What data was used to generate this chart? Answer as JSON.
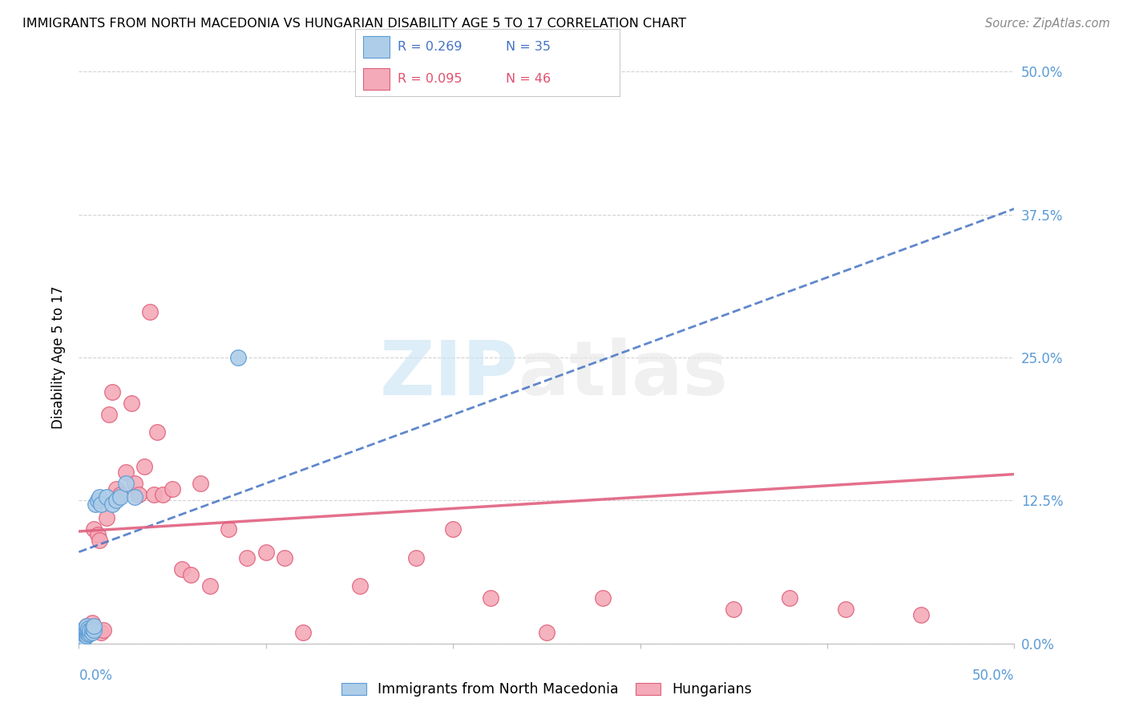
{
  "title": "IMMIGRANTS FROM NORTH MACEDONIA VS HUNGARIAN DISABILITY AGE 5 TO 17 CORRELATION CHART",
  "source": "Source: ZipAtlas.com",
  "ylabel": "Disability Age 5 to 17",
  "ylabel_ticks": [
    "0.0%",
    "12.5%",
    "25.0%",
    "37.5%",
    "50.0%"
  ],
  "ylabel_tick_vals": [
    0.0,
    0.125,
    0.25,
    0.375,
    0.5
  ],
  "xlim": [
    0.0,
    0.5
  ],
  "ylim": [
    0.0,
    0.5
  ],
  "blue_color": "#aecde8",
  "blue_edge_color": "#5b9bd5",
  "pink_color": "#f4aab8",
  "pink_edge_color": "#e0607a",
  "blue_line_color": "#4472c4",
  "pink_line_color": "#e06080",
  "legend_label_blue": "Immigrants from North Macedonia",
  "legend_label_pink": "Hungarians",
  "background_color": "#ffffff",
  "grid_color": "#d3d3d3",
  "blue_points_x": [
    0.001,
    0.001,
    0.001,
    0.002,
    0.002,
    0.002,
    0.002,
    0.003,
    0.003,
    0.003,
    0.003,
    0.004,
    0.004,
    0.004,
    0.004,
    0.005,
    0.005,
    0.005,
    0.006,
    0.006,
    0.007,
    0.007,
    0.008,
    0.008,
    0.009,
    0.01,
    0.011,
    0.012,
    0.015,
    0.018,
    0.02,
    0.022,
    0.025,
    0.03,
    0.085
  ],
  "blue_points_y": [
    0.005,
    0.008,
    0.01,
    0.005,
    0.008,
    0.01,
    0.012,
    0.005,
    0.008,
    0.01,
    0.012,
    0.007,
    0.01,
    0.012,
    0.015,
    0.008,
    0.011,
    0.013,
    0.009,
    0.012,
    0.01,
    0.013,
    0.012,
    0.015,
    0.122,
    0.125,
    0.128,
    0.122,
    0.128,
    0.122,
    0.125,
    0.128,
    0.14,
    0.128,
    0.25
  ],
  "pink_points_x": [
    0.002,
    0.003,
    0.004,
    0.005,
    0.006,
    0.007,
    0.008,
    0.009,
    0.01,
    0.011,
    0.012,
    0.013,
    0.015,
    0.016,
    0.018,
    0.02,
    0.022,
    0.025,
    0.028,
    0.03,
    0.032,
    0.035,
    0.038,
    0.04,
    0.042,
    0.045,
    0.05,
    0.055,
    0.06,
    0.065,
    0.07,
    0.08,
    0.09,
    0.1,
    0.11,
    0.12,
    0.15,
    0.18,
    0.2,
    0.22,
    0.25,
    0.28,
    0.35,
    0.38,
    0.41,
    0.45
  ],
  "pink_points_y": [
    0.01,
    0.012,
    0.015,
    0.01,
    0.012,
    0.018,
    0.1,
    0.012,
    0.095,
    0.09,
    0.01,
    0.012,
    0.11,
    0.2,
    0.22,
    0.135,
    0.13,
    0.15,
    0.21,
    0.14,
    0.13,
    0.155,
    0.29,
    0.13,
    0.185,
    0.13,
    0.135,
    0.065,
    0.06,
    0.14,
    0.05,
    0.1,
    0.075,
    0.08,
    0.075,
    0.01,
    0.05,
    0.075,
    0.1,
    0.04,
    0.01,
    0.04,
    0.03,
    0.04,
    0.03,
    0.025
  ],
  "blue_regress": [
    0.0,
    0.5,
    0.08,
    0.38
  ],
  "pink_regress": [
    0.0,
    0.5,
    0.098,
    0.148
  ]
}
